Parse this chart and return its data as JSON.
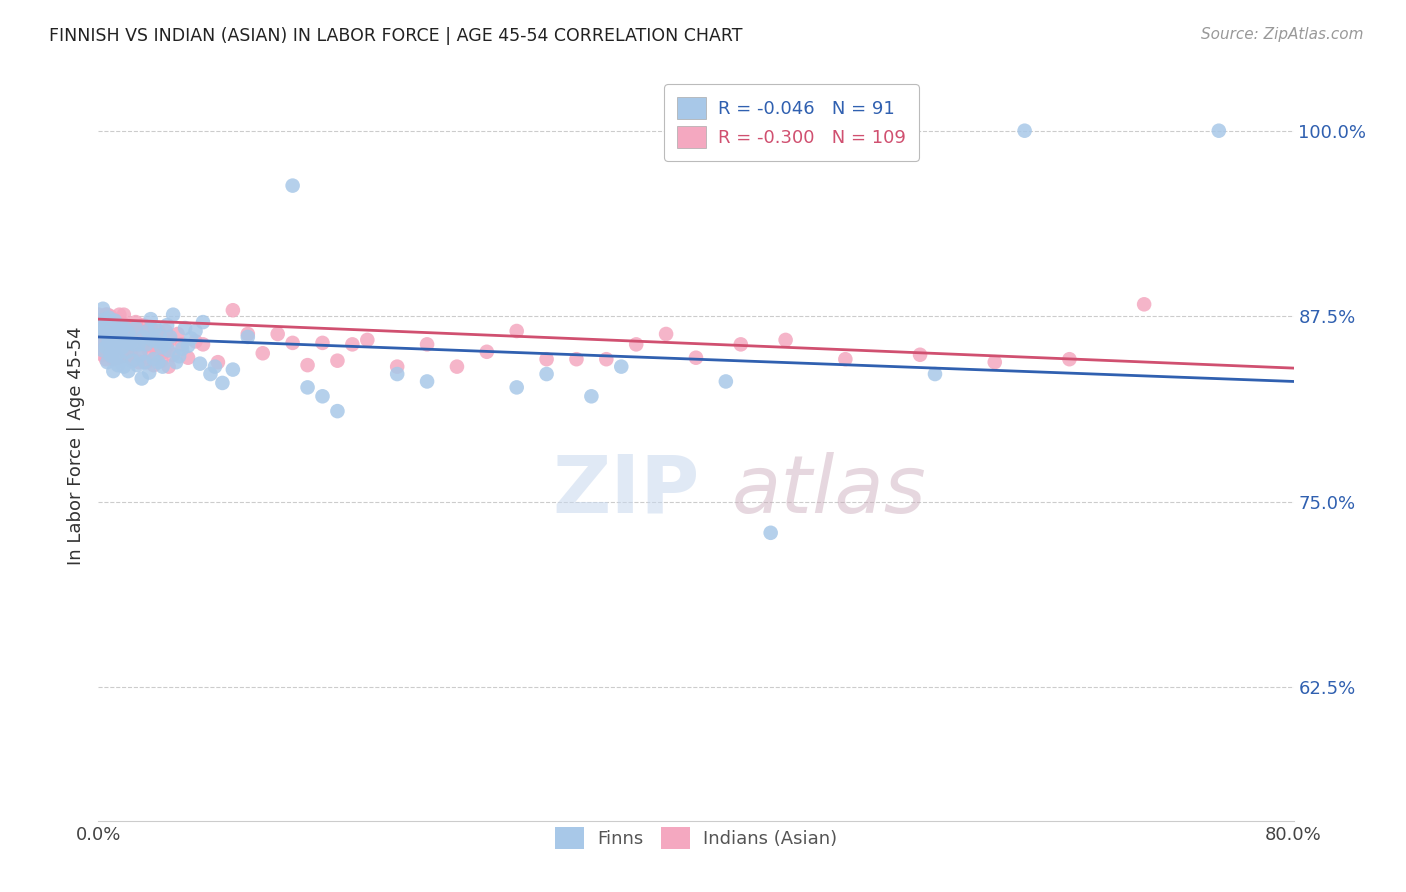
{
  "title": "FINNISH VS INDIAN (ASIAN) IN LABOR FORCE | AGE 45-54 CORRELATION CHART",
  "source": "Source: ZipAtlas.com",
  "ylabel": "In Labor Force | Age 45-54",
  "xlim": [
    0.0,
    0.8
  ],
  "ylim": [
    0.535,
    1.04
  ],
  "yticks": [
    0.625,
    0.75,
    0.875,
    1.0
  ],
  "ytick_labels": [
    "62.5%",
    "75.0%",
    "87.5%",
    "100.0%"
  ],
  "finns_R": "-0.046",
  "finns_N": "91",
  "indians_R": "-0.300",
  "indians_N": "109",
  "finn_color": "#a8c8e8",
  "indian_color": "#f4a8c0",
  "finn_line_color": "#3060b0",
  "indian_line_color": "#d05070",
  "legend_finn_label": "Finns",
  "legend_indian_label": "Indians (Asian)",
  "finns_scatter_x": [
    0.0,
    0.001,
    0.002,
    0.003,
    0.003,
    0.004,
    0.005,
    0.005,
    0.006,
    0.006,
    0.007,
    0.007,
    0.008,
    0.009,
    0.009,
    0.01,
    0.01,
    0.011,
    0.011,
    0.012,
    0.012,
    0.013,
    0.013,
    0.014,
    0.015,
    0.015,
    0.016,
    0.016,
    0.017,
    0.017,
    0.018,
    0.019,
    0.02,
    0.02,
    0.021,
    0.022,
    0.023,
    0.024,
    0.025,
    0.026,
    0.027,
    0.028,
    0.029,
    0.03,
    0.031,
    0.032,
    0.033,
    0.034,
    0.035,
    0.036,
    0.037,
    0.038,
    0.039,
    0.04,
    0.041,
    0.042,
    0.043,
    0.044,
    0.046,
    0.047,
    0.048,
    0.05,
    0.052,
    0.054,
    0.056,
    0.058,
    0.06,
    0.062,
    0.065,
    0.068,
    0.07,
    0.075,
    0.078,
    0.083,
    0.09,
    0.1,
    0.13,
    0.14,
    0.15,
    0.16,
    0.2,
    0.22,
    0.28,
    0.3,
    0.33,
    0.35,
    0.42,
    0.45,
    0.56,
    0.62,
    0.75
  ],
  "finns_scatter_y": [
    0.868,
    0.872,
    0.86,
    0.88,
    0.852,
    0.865,
    0.873,
    0.854,
    0.862,
    0.844,
    0.858,
    0.874,
    0.849,
    0.867,
    0.848,
    0.857,
    0.838,
    0.872,
    0.854,
    0.848,
    0.864,
    0.865,
    0.842,
    0.858,
    0.863,
    0.845,
    0.854,
    0.867,
    0.841,
    0.868,
    0.858,
    0.851,
    0.864,
    0.838,
    0.857,
    0.859,
    0.845,
    0.856,
    0.867,
    0.842,
    0.856,
    0.849,
    0.833,
    0.861,
    0.844,
    0.856,
    0.865,
    0.837,
    0.873,
    0.859,
    0.846,
    0.867,
    0.858,
    0.844,
    0.862,
    0.854,
    0.841,
    0.856,
    0.869,
    0.852,
    0.861,
    0.876,
    0.844,
    0.848,
    0.853,
    0.867,
    0.855,
    0.86,
    0.865,
    0.843,
    0.871,
    0.836,
    0.841,
    0.83,
    0.839,
    0.861,
    0.963,
    0.827,
    0.821,
    0.811,
    0.836,
    0.831,
    0.827,
    0.836,
    0.821,
    0.841,
    0.831,
    0.729,
    0.836,
    1.0,
    1.0
  ],
  "indians_scatter_x": [
    0.0,
    0.0,
    0.0,
    0.001,
    0.001,
    0.002,
    0.002,
    0.003,
    0.003,
    0.004,
    0.004,
    0.005,
    0.005,
    0.005,
    0.006,
    0.006,
    0.007,
    0.007,
    0.008,
    0.008,
    0.009,
    0.009,
    0.01,
    0.01,
    0.011,
    0.011,
    0.012,
    0.012,
    0.013,
    0.013,
    0.014,
    0.014,
    0.015,
    0.015,
    0.016,
    0.016,
    0.017,
    0.017,
    0.018,
    0.018,
    0.019,
    0.019,
    0.02,
    0.021,
    0.021,
    0.022,
    0.022,
    0.023,
    0.023,
    0.024,
    0.025,
    0.026,
    0.027,
    0.028,
    0.029,
    0.03,
    0.031,
    0.032,
    0.033,
    0.034,
    0.035,
    0.036,
    0.037,
    0.038,
    0.039,
    0.04,
    0.041,
    0.042,
    0.043,
    0.044,
    0.045,
    0.046,
    0.047,
    0.048,
    0.05,
    0.053,
    0.056,
    0.06,
    0.065,
    0.07,
    0.08,
    0.09,
    0.1,
    0.11,
    0.12,
    0.13,
    0.14,
    0.15,
    0.16,
    0.17,
    0.18,
    0.2,
    0.22,
    0.24,
    0.26,
    0.28,
    0.3,
    0.32,
    0.34,
    0.36,
    0.38,
    0.4,
    0.43,
    0.46,
    0.5,
    0.55,
    0.6,
    0.65,
    0.7
  ],
  "indians_scatter_y": [
    0.876,
    0.866,
    0.858,
    0.872,
    0.86,
    0.87,
    0.853,
    0.861,
    0.849,
    0.869,
    0.855,
    0.863,
    0.876,
    0.846,
    0.876,
    0.858,
    0.866,
    0.849,
    0.861,
    0.875,
    0.871,
    0.853,
    0.864,
    0.846,
    0.858,
    0.871,
    0.855,
    0.871,
    0.863,
    0.847,
    0.861,
    0.876,
    0.871,
    0.856,
    0.864,
    0.848,
    0.861,
    0.876,
    0.869,
    0.853,
    0.865,
    0.848,
    0.849,
    0.859,
    0.867,
    0.852,
    0.867,
    0.861,
    0.846,
    0.86,
    0.871,
    0.858,
    0.844,
    0.865,
    0.853,
    0.869,
    0.858,
    0.844,
    0.863,
    0.852,
    0.867,
    0.855,
    0.842,
    0.862,
    0.849,
    0.865,
    0.858,
    0.845,
    0.861,
    0.851,
    0.865,
    0.855,
    0.841,
    0.859,
    0.849,
    0.863,
    0.856,
    0.847,
    0.858,
    0.856,
    0.844,
    0.879,
    0.863,
    0.85,
    0.863,
    0.857,
    0.842,
    0.857,
    0.845,
    0.856,
    0.859,
    0.841,
    0.856,
    0.841,
    0.851,
    0.865,
    0.846,
    0.846,
    0.846,
    0.856,
    0.863,
    0.847,
    0.856,
    0.859,
    0.846,
    0.849,
    0.844,
    0.846,
    0.883
  ],
  "finn_line_x0": 0.0,
  "finn_line_x1": 0.8,
  "finn_line_y0": 0.861,
  "finn_line_y1": 0.831,
  "indian_line_x0": 0.0,
  "indian_line_x1": 0.8,
  "indian_line_y0": 0.873,
  "indian_line_y1": 0.84
}
